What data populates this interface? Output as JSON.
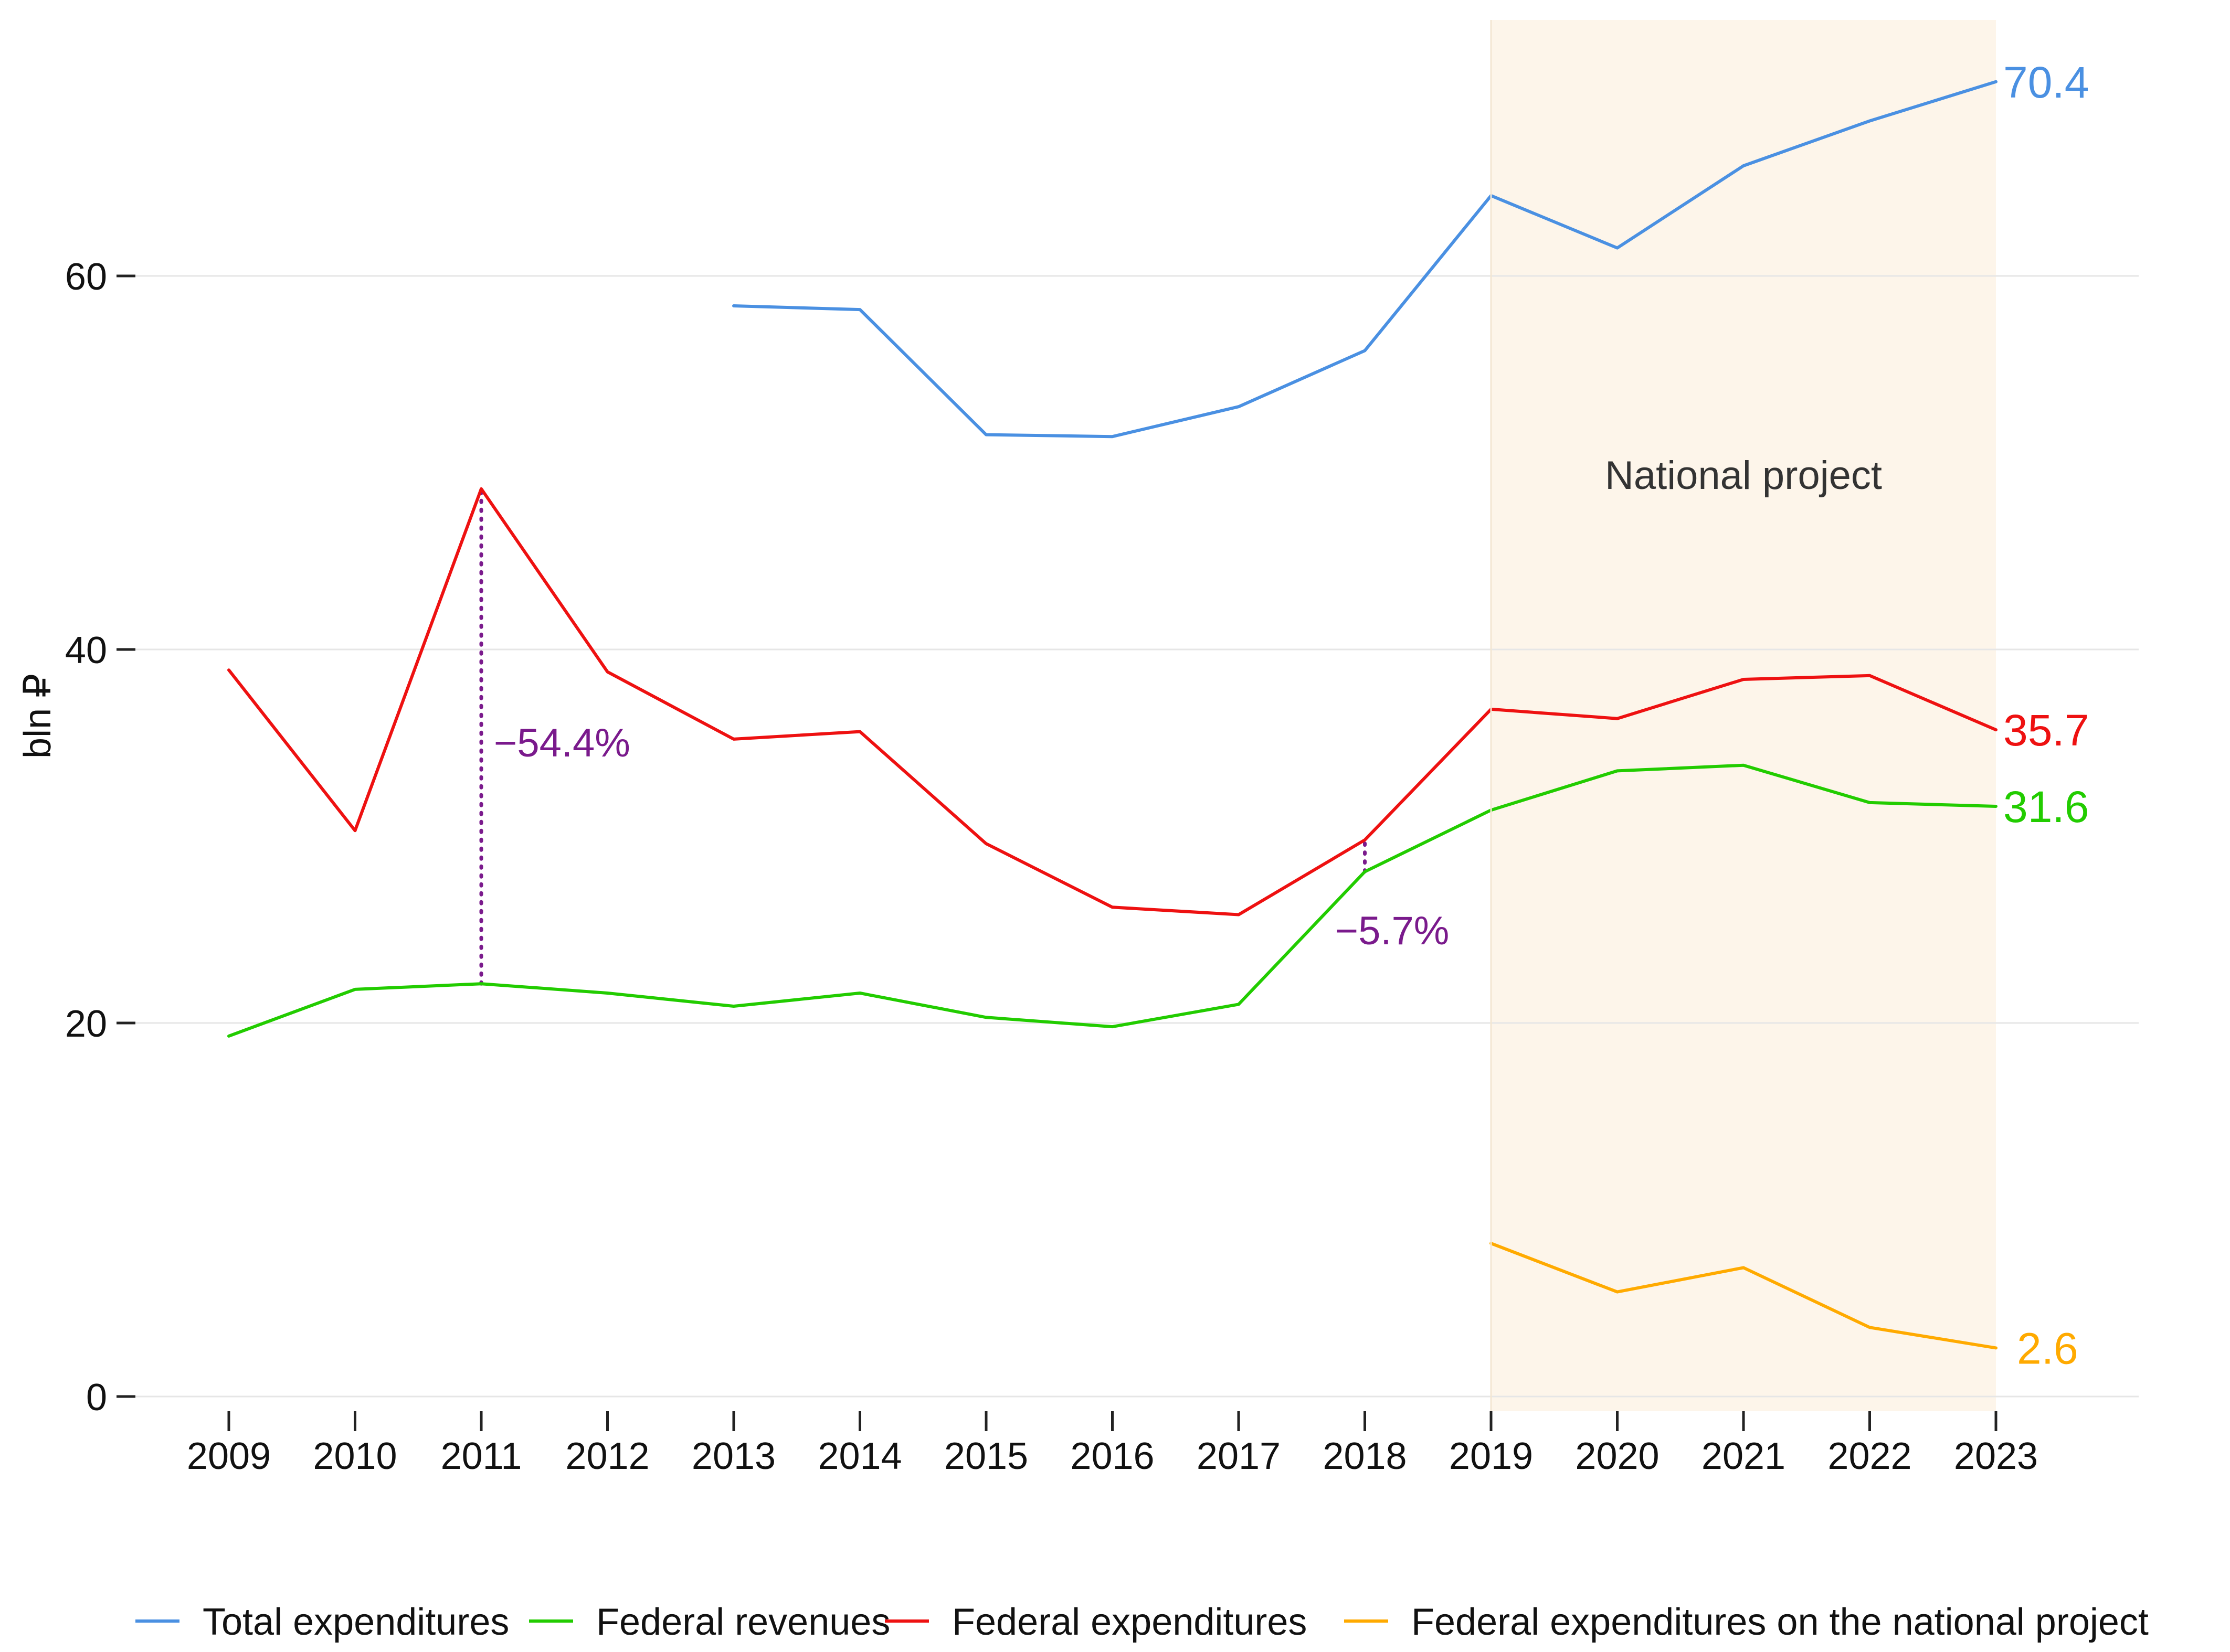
{
  "chart_data": {
    "type": "line",
    "title": "",
    "xlabel": "",
    "ylabel": "bln ₽",
    "ylim": [
      0,
      72
    ],
    "yticks": [
      0,
      20,
      40,
      60
    ],
    "categories": [
      "2009",
      "2010",
      "2011",
      "2012",
      "2013",
      "2014",
      "2015",
      "2016",
      "2017",
      "2018",
      "2019",
      "2020",
      "2021",
      "2022",
      "2023"
    ],
    "series": [
      {
        "name": "Total expenditures",
        "color": "#4a90e2",
        "values": [
          null,
          null,
          null,
          null,
          58.4,
          58.2,
          51.5,
          51.4,
          53.0,
          56.0,
          64.3,
          61.5,
          65.9,
          68.3,
          70.4
        ],
        "end_label": "70.4"
      },
      {
        "name": "Federal revenues",
        "color": "#22cc00",
        "values": [
          19.3,
          21.8,
          22.1,
          21.6,
          20.9,
          21.6,
          20.3,
          19.8,
          21.0,
          28.1,
          31.4,
          33.5,
          33.8,
          31.8,
          31.6
        ],
        "end_label": "31.6"
      },
      {
        "name": "Federal expenditures",
        "color": "#ee1111",
        "values": [
          38.9,
          30.3,
          48.6,
          38.8,
          35.2,
          35.6,
          29.6,
          26.2,
          25.8,
          29.8,
          36.8,
          36.3,
          38.4,
          38.6,
          35.7
        ],
        "end_label": "35.7"
      },
      {
        "name": "Federal expenditures on the national project",
        "color": "#ffaa00",
        "values": [
          null,
          null,
          null,
          null,
          null,
          null,
          null,
          null,
          null,
          null,
          8.2,
          5.6,
          6.9,
          3.7,
          2.6
        ],
        "end_label": "2.6"
      }
    ],
    "band": {
      "from": "2019",
      "to": "2023",
      "label": "National project",
      "color": "#fdf5ea"
    },
    "annotations": [
      {
        "x": "2011",
        "y_from": 22.1,
        "y_to": 48.6,
        "label": "−54.4%",
        "color": "#7a1a8c"
      },
      {
        "x": "2018",
        "y_from": 28.1,
        "y_to": 29.8,
        "label": "−5.7%",
        "color": "#7a1a8c"
      }
    ],
    "legend": {
      "position": "bottom"
    },
    "grid": true
  }
}
